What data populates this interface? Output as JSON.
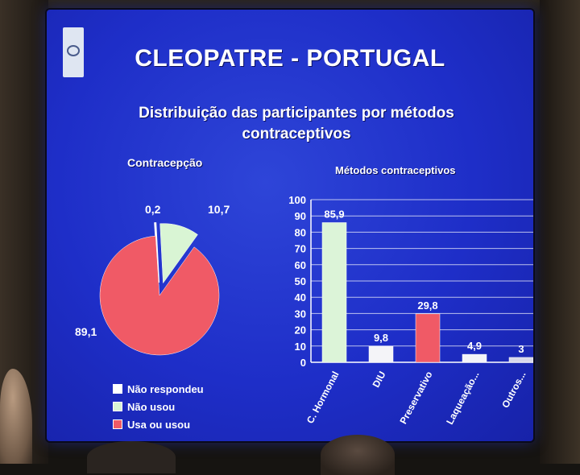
{
  "slide": {
    "title": "CLEOPATRE - PORTUGAL",
    "subtitle_line1": "Distribuição das participantes por métodos",
    "subtitle_line2": "contraceptivos"
  },
  "chart_data": [
    {
      "type": "pie",
      "title": "Contracepção",
      "labels": [
        "Não respondeu",
        "Não usou",
        "Usa ou usou"
      ],
      "values": [
        0.2,
        10.7,
        89.1
      ],
      "value_labels": [
        "0,2",
        "10,7",
        "89,1"
      ],
      "colors": [
        "#ffffff",
        "#d9f5d4",
        "#f05a66"
      ],
      "exploded": [
        true,
        true,
        false
      ],
      "legend": "bottom-left"
    },
    {
      "type": "bar",
      "title": "Métodos contraceptivos",
      "categories": [
        "C. Hormonal",
        "DIU",
        "Preservativo",
        "Laqueação...",
        "Outros..."
      ],
      "values": [
        85.9,
        9.8,
        29.8,
        4.9,
        3
      ],
      "value_labels": [
        "85,9",
        "9,8",
        "29,8",
        "4,9",
        "3"
      ],
      "colors": [
        "#dcf4d8",
        "#f4f4f8",
        "#f05a66",
        "#f4f4f8",
        "#d8d8ea"
      ],
      "ylim": [
        0,
        100
      ],
      "yticks": [
        "0",
        "10",
        "20",
        "30",
        "40",
        "50",
        "60",
        "70",
        "80",
        "90",
        "100"
      ],
      "grid": true
    }
  ]
}
